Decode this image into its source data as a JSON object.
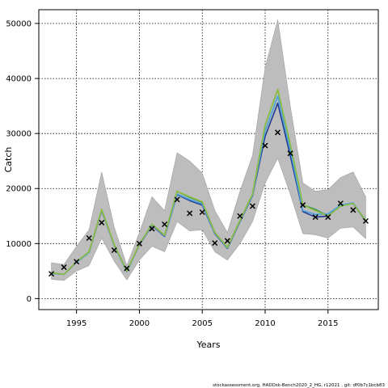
{
  "chart_data": {
    "type": "line",
    "xlabel": "Years",
    "ylabel": "Catch",
    "xlim": [
      1992,
      2019
    ],
    "ylim": [
      -2000,
      52500
    ],
    "xticks": [
      1995,
      2000,
      2005,
      2010,
      2015
    ],
    "yticks": [
      0,
      10000,
      20000,
      30000,
      40000,
      50000
    ],
    "grid": true,
    "footer": "stockassessment.org, HADDsk-Bench2020_2_HG, r12021 , git: df0b7c1bcb83",
    "x": [
      1993,
      1994,
      1995,
      1996,
      1997,
      1998,
      1999,
      2000,
      2001,
      2002,
      2003,
      2004,
      2005,
      2006,
      2007,
      2008,
      2009,
      2010,
      2011,
      2012,
      2013,
      2014,
      2015,
      2016,
      2017,
      2018
    ],
    "ci_band": {
      "upper": [
        6500,
        6200,
        9500,
        12500,
        23000,
        13000,
        6000,
        12000,
        18500,
        16000,
        26500,
        25000,
        22800,
        16000,
        12000,
        19500,
        26000,
        42000,
        50700,
        35000,
        21000,
        19500,
        19800,
        22000,
        23000,
        18500
      ],
      "lower": [
        3500,
        3300,
        5000,
        6000,
        11000,
        6800,
        3400,
        7000,
        9500,
        8500,
        14000,
        12300,
        12500,
        8500,
        7000,
        10000,
        14000,
        21000,
        25500,
        19000,
        11800,
        11600,
        11000,
        12800,
        13000,
        10900
      ]
    },
    "series": [
      {
        "color": "#2e8b57",
        "values": [
          4700,
          4400,
          6700,
          8500,
          16200,
          9800,
          5000,
          9900,
          13500,
          11500,
          19500,
          18400,
          17500,
          12000,
          9300,
          14200,
          19000,
          31500,
          38000,
          28000,
          17000,
          16200,
          15000,
          16800,
          17300,
          14200
        ]
      },
      {
        "color": "#1f3a93",
        "values": [
          4600,
          4400,
          6600,
          8400,
          16000,
          9700,
          4900,
          9800,
          13300,
          11300,
          18900,
          17800,
          17000,
          11800,
          9100,
          14000,
          18700,
          29500,
          35500,
          26000,
          15800,
          14800,
          15000,
          17000,
          17300,
          14100
        ]
      },
      {
        "color": "#4aa3df",
        "values": [
          4600,
          4400,
          6600,
          8400,
          16100,
          9700,
          4900,
          9900,
          13400,
          11400,
          19000,
          18000,
          17200,
          11900,
          9200,
          14100,
          18800,
          30500,
          36800,
          27000,
          16000,
          15300,
          15400,
          17000,
          17400,
          14200
        ]
      },
      {
        "color": "#8fbf3f",
        "values": [
          4700,
          4400,
          6700,
          8500,
          16200,
          9800,
          5000,
          9900,
          13500,
          11500,
          19500,
          18500,
          17600,
          12000,
          9300,
          14200,
          19000,
          31500,
          38000,
          28000,
          17000,
          16000,
          15000,
          16800,
          17300,
          14200
        ]
      }
    ],
    "observations": {
      "marker": "x",
      "x": [
        1993,
        1994,
        1995,
        1996,
        1997,
        1998,
        1999,
        2000,
        2001,
        2002,
        2003,
        2004,
        2005,
        2006,
        2007,
        2008,
        2009,
        2010,
        2011,
        2012,
        2013,
        2014,
        2015,
        2016,
        2017,
        2018
      ],
      "y": [
        4500,
        5700,
        6700,
        11000,
        13800,
        8800,
        5500,
        10000,
        12700,
        13500,
        18000,
        15500,
        15700,
        10100,
        10500,
        15000,
        16800,
        27800,
        30200,
        26400,
        17000,
        14800,
        14800,
        17300,
        16100,
        14100
      ]
    }
  }
}
